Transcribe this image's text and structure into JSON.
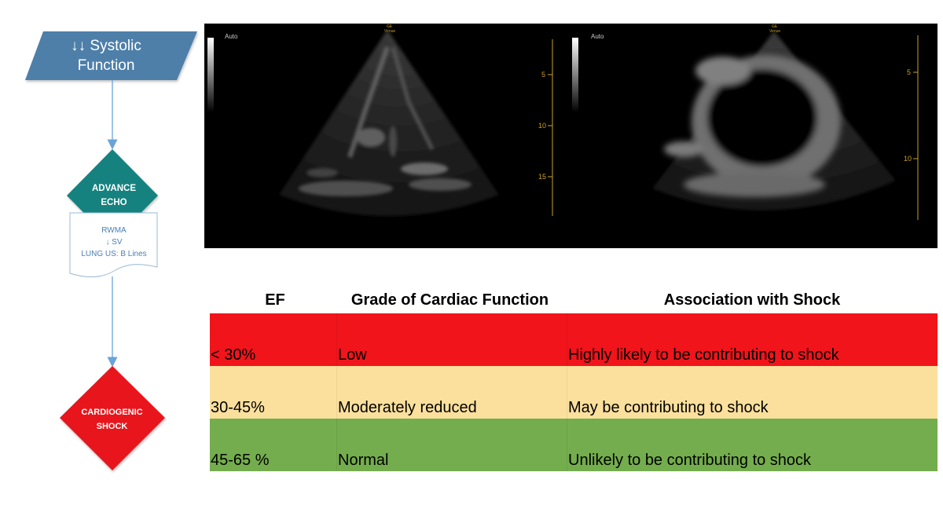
{
  "flowchart": {
    "systolic": "↓↓ Systolic Function",
    "systolic_line1": "↓↓ Systolic",
    "systolic_line2": "Function",
    "advance_echo_line1": "ADVANCE",
    "advance_echo_line2": "ECHO",
    "findings": [
      "RWMA",
      "↓ SV",
      "LUNG US: B Lines"
    ],
    "cardiogenic_line1": "CARDIOGENIC",
    "cardiogenic_line2": "SHOCK",
    "colors": {
      "parallelogram": "#4d7fa9",
      "diamond_teal": "#17827f",
      "diamond_red": "#e8141e",
      "connector": "#6aa3d8"
    }
  },
  "echo": {
    "left_auto": "Auto",
    "left_vendor": "GE",
    "left_vendor_sub": "Venue",
    "left_ticks": [
      "5",
      "10",
      "15"
    ],
    "right_auto": "Auto",
    "right_vendor": "GE",
    "right_vendor_sub": "Venue",
    "right_ticks": [
      "5",
      "10"
    ]
  },
  "table": {
    "headers": [
      "EF",
      "Grade of Cardiac Function",
      "Association with Shock"
    ],
    "rows": [
      {
        "ef": "< 30%",
        "grade": "Low",
        "association": "Highly likely to be contributing  to shock",
        "color": "#f1141b"
      },
      {
        "ef": "30-45%",
        "grade": "Moderately reduced",
        "association": "May be contributing to shock",
        "color": "#fbe09d"
      },
      {
        "ef": "45-65 %",
        "grade": "Normal",
        "association": "Unlikely to be contributing to shock",
        "color": "#74ad4d"
      }
    ]
  }
}
